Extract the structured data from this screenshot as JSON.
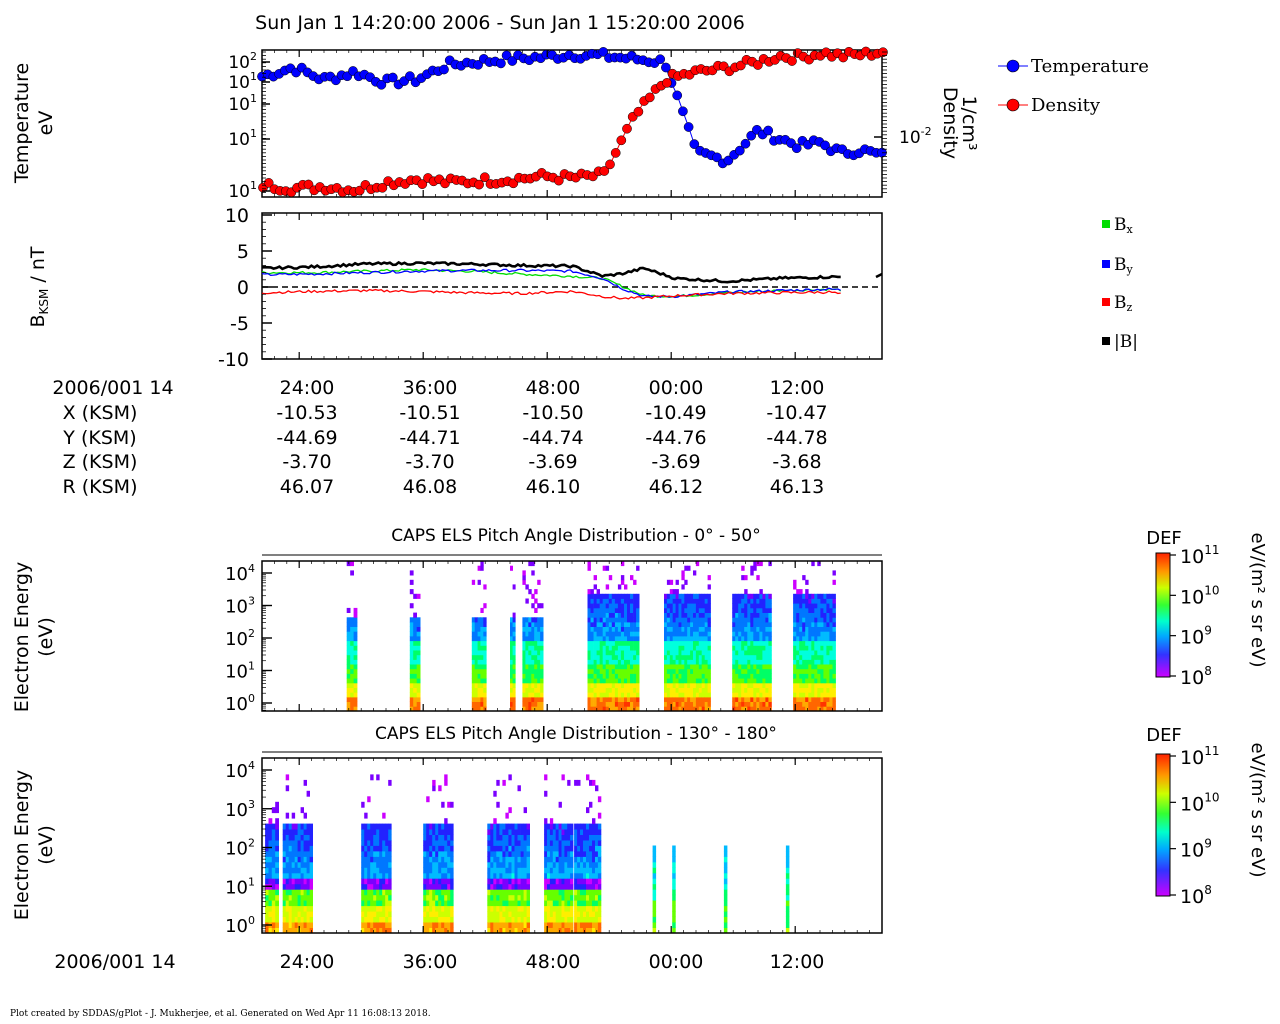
{
  "title": "Sun Jan 1 14:20:00 2006 - Sun Jan 1 15:20:00 2006",
  "footer": "Plot created by SDDAS/gPlot - J. Mukherjee, et al.  Generated on Wed Apr 11 16:08:13 2018.",
  "colors": {
    "temperature": "#0000ff",
    "density": "#ff0000",
    "bx": "#00dd00",
    "by": "#0000ff",
    "bz": "#ff0000",
    "bmag": "#000000"
  },
  "panel1": {
    "ylabel_line1": "Temperature",
    "ylabel_line2": "eV",
    "right_label_line1": "Density",
    "right_label_line2": "1/cm³",
    "left_ticks": [
      {
        "base": "10",
        "exp": "2"
      },
      {
        "base": "10",
        "exp": "1"
      },
      {
        "base": "10",
        "exp": "1"
      },
      {
        "base": "10",
        "exp": "1"
      },
      {
        "base": "10",
        "exp": "1"
      }
    ],
    "right_tick": {
      "base": "10",
      "exp": "-2"
    },
    "legend": [
      "Temperature",
      "Density"
    ]
  },
  "panel2": {
    "ylabel_main": "B",
    "ylabel_sub": "KSM",
    "ylabel_rest": " / nT",
    "ticks": [
      "10",
      "5",
      "0",
      "-5",
      "-10"
    ],
    "legend": [
      {
        "base": "B",
        "sub": "x"
      },
      {
        "base": "B",
        "sub": "y"
      },
      {
        "base": "B",
        "sub": "z"
      },
      {
        "base": "|B|",
        "sub": ""
      }
    ]
  },
  "ephemeris": {
    "labels": [
      "2006/001 14",
      "X (KSM)",
      "Y (KSM)",
      "Z (KSM)",
      "R (KSM)"
    ],
    "columns": [
      [
        "24:00",
        "-10.53",
        "-44.69",
        "-3.70",
        "46.07"
      ],
      [
        "36:00",
        "-10.51",
        "-44.71",
        "-3.70",
        "46.08"
      ],
      [
        "48:00",
        "-10.50",
        "-44.74",
        "-3.69",
        "46.10"
      ],
      [
        "00:00",
        "-10.49",
        "-44.76",
        "-3.69",
        "46.12"
      ],
      [
        "12:00",
        "-10.47",
        "-44.78",
        "-3.68",
        "46.13"
      ]
    ]
  },
  "spec1": {
    "title": "CAPS ELS Pitch Angle Distribution - 0° - 50°",
    "ylabel_line1": "Electron Energy",
    "ylabel_line2": "(eV)",
    "ticks": [
      {
        "base": "10",
        "exp": "4"
      },
      {
        "base": "10",
        "exp": "3"
      },
      {
        "base": "10",
        "exp": "2"
      },
      {
        "base": "10",
        "exp": "1"
      },
      {
        "base": "10",
        "exp": "0"
      }
    ],
    "cbar_title": "DEF",
    "cbar_unit": "eV/(m² s sr eV)",
    "cbar_ticks": [
      {
        "base": "10",
        "exp": "11"
      },
      {
        "base": "10",
        "exp": "10"
      },
      {
        "base": "10",
        "exp": "9"
      },
      {
        "base": "10",
        "exp": "8"
      }
    ]
  },
  "spec2": {
    "title": "CAPS ELS Pitch Angle Distribution - 130° - 180°",
    "ylabel_line1": "Electron Energy",
    "ylabel_line2": "(eV)",
    "ticks": [
      {
        "base": "10",
        "exp": "4"
      },
      {
        "base": "10",
        "exp": "3"
      },
      {
        "base": "10",
        "exp": "2"
      },
      {
        "base": "10",
        "exp": "1"
      },
      {
        "base": "10",
        "exp": "0"
      }
    ],
    "cbar_title": "DEF",
    "cbar_unit": "eV/(m² s sr eV)",
    "cbar_ticks": [
      {
        "base": "10",
        "exp": "11"
      },
      {
        "base": "10",
        "exp": "10"
      },
      {
        "base": "10",
        "exp": "9"
      },
      {
        "base": "10",
        "exp": "8"
      }
    ]
  },
  "bottom_axis": {
    "label": "2006/001 14",
    "ticks": [
      "24:00",
      "36:00",
      "48:00",
      "00:00",
      "12:00"
    ]
  },
  "chart_data": [
    {
      "type": "line",
      "title": "",
      "x_unit": "minutes after 14:20",
      "xlim": [
        0,
        60
      ],
      "y_scale": "log",
      "series": [
        {
          "name": "Temperature",
          "axis": "left",
          "color": "#0000ff",
          "x": [
            0,
            3,
            6,
            9,
            12,
            15,
            18,
            21,
            24,
            27,
            30,
            33,
            36,
            39,
            42,
            45,
            48,
            50,
            52,
            54,
            56,
            58,
            60
          ],
          "y_rel": [
            0.82,
            0.88,
            0.8,
            0.85,
            0.78,
            0.8,
            0.9,
            0.92,
            0.94,
            0.95,
            0.97,
            0.96,
            0.94,
            0.92,
            0.3,
            0.25,
            0.45,
            0.4,
            0.35,
            0.37,
            0.3,
            0.32,
            0.28
          ]
        },
        {
          "name": "Density",
          "axis": "right",
          "color": "#ff0000",
          "x": [
            0,
            3,
            6,
            9,
            12,
            15,
            18,
            21,
            24,
            27,
            30,
            33,
            36,
            39,
            42,
            45,
            48,
            50,
            52,
            54,
            56,
            58,
            60
          ],
          "y_rel": [
            0.08,
            0.06,
            0.07,
            0.05,
            0.1,
            0.12,
            0.1,
            0.11,
            0.12,
            0.14,
            0.13,
            0.15,
            0.55,
            0.8,
            0.85,
            0.88,
            0.92,
            0.96,
            0.95,
            0.98,
            0.96,
            0.97,
            0.99
          ]
        }
      ]
    },
    {
      "type": "line",
      "title": "",
      "ylabel": "BKSM / nT",
      "ylim": [
        -10,
        10
      ],
      "series": [
        {
          "name": "Bx",
          "color": "#00dd00",
          "x": [
            0,
            5,
            10,
            15,
            20,
            25,
            30,
            33,
            35,
            37,
            40,
            45,
            50,
            55,
            56
          ],
          "y": [
            2.0,
            2.0,
            2.2,
            2.4,
            2.2,
            1.8,
            1.5,
            1.2,
            0.0,
            -1.2,
            -1.3,
            -0.8,
            -0.5,
            -0.3,
            -0.4
          ]
        },
        {
          "name": "By",
          "color": "#0000ff",
          "x": [
            0,
            5,
            10,
            15,
            20,
            25,
            30,
            33,
            35,
            37,
            40,
            45,
            50,
            55,
            56
          ],
          "y": [
            1.7,
            1.8,
            2.0,
            2.2,
            2.3,
            2.3,
            2.2,
            1.2,
            -0.3,
            -1.3,
            -1.3,
            -0.7,
            -0.5,
            -0.3,
            -0.4
          ]
        },
        {
          "name": "Bz",
          "color": "#ff0000",
          "x": [
            0,
            5,
            10,
            15,
            20,
            25,
            30,
            33,
            35,
            37,
            40,
            45,
            50,
            55,
            56
          ],
          "y": [
            -0.8,
            -0.6,
            -0.5,
            -0.6,
            -0.8,
            -0.9,
            -0.6,
            -1.3,
            -1.6,
            -1.5,
            -1.2,
            -0.9,
            -0.8,
            -0.7,
            -1.0
          ]
        },
        {
          "name": "|B|",
          "color": "#000000",
          "x": [
            0,
            5,
            10,
            15,
            20,
            25,
            30,
            33,
            35,
            37,
            40,
            45,
            50,
            55,
            56
          ],
          "y": [
            2.6,
            2.8,
            3.2,
            3.3,
            3.2,
            3.0,
            2.9,
            1.5,
            1.9,
            2.6,
            1.2,
            0.8,
            1.2,
            1.4,
            1.4
          ]
        }
      ]
    },
    {
      "type": "heatmap",
      "title": "CAPS ELS Pitch Angle Distribution - 0° - 50°",
      "ylabel": "Electron Energy (eV)",
      "y_scale": "log",
      "ylim": [
        1,
        10000
      ],
      "colorbar": {
        "label": "DEF eV/(m² s sr eV)",
        "range": [
          100000000.0,
          100000000000.0
        ],
        "scale": "log"
      },
      "bursts_minutes": [
        [
          8.2,
          9.2
        ],
        [
          14.3,
          15.3
        ],
        [
          20.3,
          21.7
        ],
        [
          24.0,
          24.5
        ],
        [
          25.2,
          27.2
        ],
        [
          31.5,
          36.5
        ],
        [
          38.9,
          43.4
        ],
        [
          45.5,
          49.3
        ],
        [
          51.4,
          55.5
        ]
      ]
    },
    {
      "type": "heatmap",
      "title": "CAPS ELS Pitch Angle Distribution - 130° - 180°",
      "ylabel": "Electron Energy (eV)",
      "y_scale": "log",
      "ylim": [
        1,
        10000
      ],
      "colorbar": {
        "label": "DEF eV/(m² s sr eV)",
        "range": [
          100000000.0,
          100000000000.0
        ],
        "scale": "log"
      },
      "bursts_minutes": [
        [
          0.3,
          1.6
        ],
        [
          2.0,
          4.9
        ],
        [
          9.6,
          12.5
        ],
        [
          15.6,
          18.5
        ],
        [
          21.8,
          25.9
        ],
        [
          27.3,
          30.1
        ],
        [
          30.2,
          32.8
        ],
        [
          37.8,
          38.1
        ],
        [
          39.7,
          40.0
        ],
        [
          44.7,
          45.0
        ],
        [
          50.7,
          51.0
        ]
      ]
    }
  ]
}
